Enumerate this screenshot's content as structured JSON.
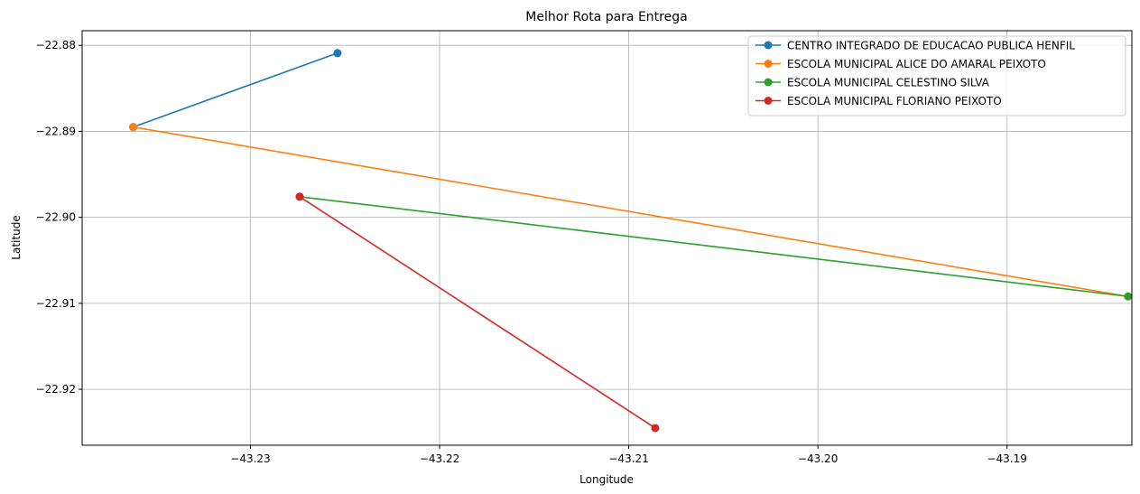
{
  "chart_data": {
    "type": "line",
    "title": "Melhor Rota para Entrega",
    "xlabel": "Longitude",
    "ylabel": "Latitude",
    "xlim": [
      -43.2389,
      -43.1834
    ],
    "ylim": [
      -22.9265,
      -22.8783
    ],
    "xticks": [
      -43.23,
      -43.22,
      -43.21,
      -43.2,
      -43.19
    ],
    "xtick_labels": [
      "−43.23",
      "−43.22",
      "−43.21",
      "−43.20",
      "−43.19"
    ],
    "yticks": [
      -22.88,
      -22.89,
      -22.9,
      -22.91,
      -22.92
    ],
    "ytick_labels": [
      "−22.88",
      "−22.89",
      "−22.90",
      "−22.91",
      "−22.92"
    ],
    "grid": true,
    "legend_position": "top-right",
    "series": [
      {
        "name": "CENTRO INTEGRADO DE EDUCACAO PUBLICA HENFIL",
        "color": "#1f77b4",
        "x": [
          -43.2254,
          -43.2362
        ],
        "y": [
          -22.8809,
          -22.8895
        ]
      },
      {
        "name": "ESCOLA MUNICIPAL ALICE DO AMARAL PEIXOTO",
        "color": "#ff7f0e",
        "x": [
          -43.2362,
          -43.1836
        ],
        "y": [
          -22.8895,
          -22.9092
        ]
      },
      {
        "name": "ESCOLA MUNICIPAL CELESTINO SILVA",
        "color": "#2ca02c",
        "x": [
          -43.1836,
          -43.2274
        ],
        "y": [
          -22.9092,
          -22.8976
        ]
      },
      {
        "name": "ESCOLA MUNICIPAL FLORIANO PEIXOTO",
        "color": "#d62728",
        "x": [
          -43.2274,
          -43.2086
        ],
        "y": [
          -22.8976,
          -22.9245
        ]
      }
    ]
  }
}
